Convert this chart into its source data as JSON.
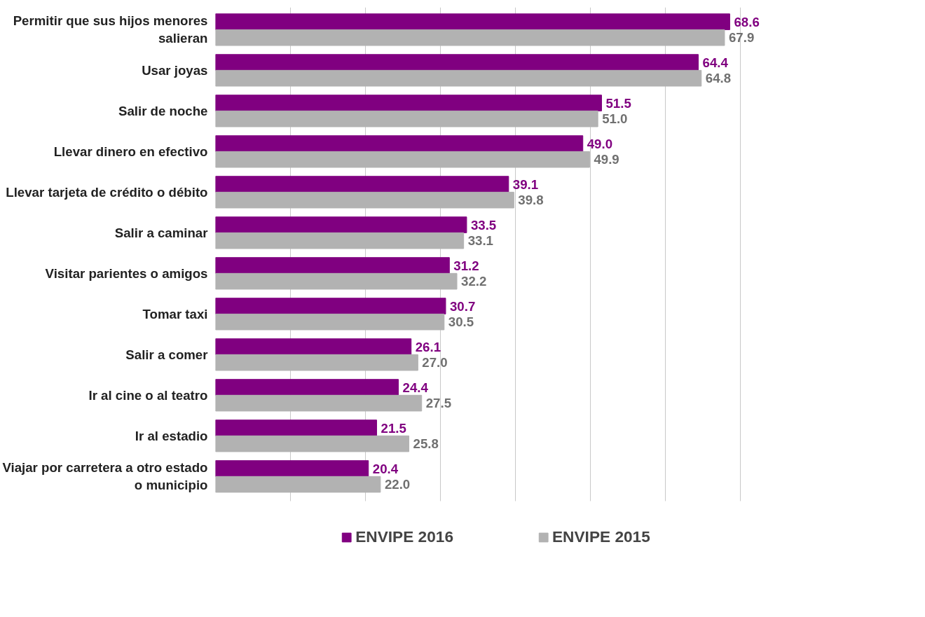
{
  "chart_data": {
    "type": "bar",
    "orientation": "horizontal",
    "categories": [
      "Permitir que sus hijos menores salieran",
      "Usar joyas",
      "Salir de noche",
      "Llevar dinero en efectivo",
      "Llevar tarjeta de crédito o débito",
      "Salir a caminar",
      "Visitar parientes o amigos",
      "Tomar taxi",
      "Salir a comer",
      "Ir al cine o al teatro",
      "Ir al estadio",
      "Viajar por carretera a otro estado o municipio"
    ],
    "series": [
      {
        "name": "ENVIPE 2016",
        "color": "#800080",
        "values": [
          68.6,
          64.4,
          51.5,
          49.0,
          39.1,
          33.5,
          31.2,
          30.7,
          26.1,
          24.4,
          21.5,
          20.4
        ],
        "value_labels": [
          "68.6",
          "64.4",
          "51.5",
          "49.0",
          "39.1",
          "33.5",
          "31.2",
          "30.7",
          "26.1",
          "24.4",
          "21.5",
          "20.4"
        ]
      },
      {
        "name": "ENVIPE 2015",
        "color": "#b2b2b2",
        "values": [
          67.9,
          64.8,
          51.0,
          49.9,
          39.8,
          33.1,
          32.2,
          30.5,
          27.0,
          27.5,
          25.8,
          22.0
        ],
        "value_labels": [
          "67.9",
          "64.8",
          "51.0",
          "49.9",
          "39.8",
          "33.1",
          "32.2",
          "30.5",
          "27.0",
          "27.5",
          "25.8",
          "22.0"
        ]
      }
    ],
    "tick_labels": "y",
    "grid": "x",
    "legend": "bottom"
  }
}
